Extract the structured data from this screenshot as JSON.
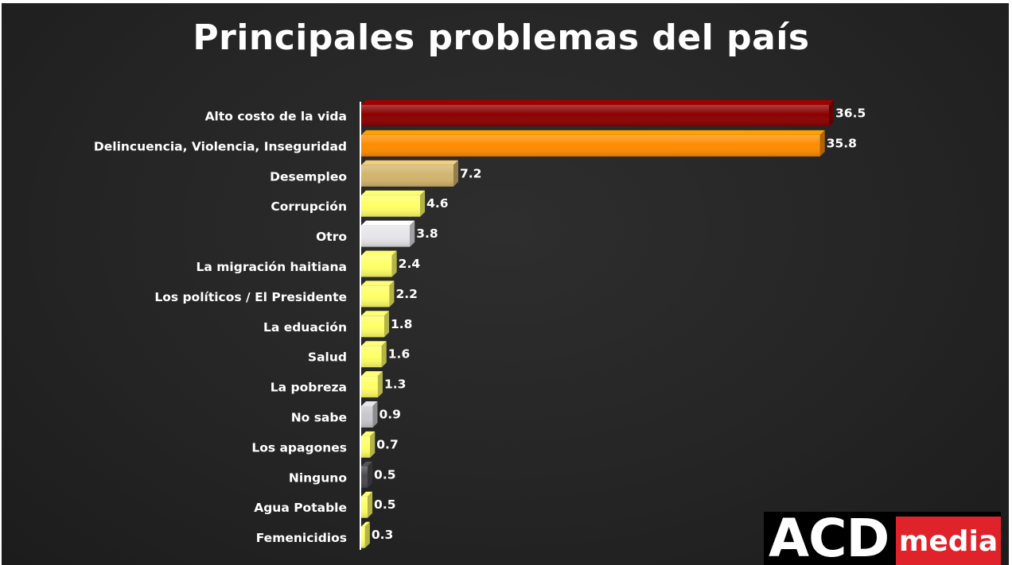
{
  "title": "Principales problemas del país",
  "logo": {
    "left": "ACD",
    "right": "media"
  },
  "chart_data": {
    "type": "bar",
    "orientation": "horizontal",
    "title": "Principales problemas del país",
    "categories": [
      "Alto costo de la vida",
      "Delincuencia, Violencia, Inseguridad",
      "Desempleo",
      "Corrupción",
      "Otro",
      "La migración haitiana",
      "Los políticos / El Presidente",
      "La eduación",
      "Salud",
      "La pobreza",
      "No sabe",
      "Los apagones",
      "Ninguno",
      "Agua Potable",
      "Femenicidios"
    ],
    "values": [
      36.5,
      35.8,
      7.2,
      4.6,
      3.8,
      2.4,
      2.2,
      1.8,
      1.6,
      1.3,
      0.9,
      0.7,
      0.5,
      0.5,
      0.3
    ],
    "value_labels": [
      "36.5",
      "35.8",
      "7.2",
      "4.6",
      "3.8",
      "2.4",
      "2.2",
      "1.8",
      "1.6",
      "1.3",
      "0.9",
      "0.7",
      "0.5",
      "0.5",
      "0.3"
    ],
    "colors": [
      "#8b0000",
      "#ff8c00",
      "#d2b46c",
      "#ffff66",
      "#e6e6ea",
      "#ffff66",
      "#ffff66",
      "#ffff66",
      "#ffff66",
      "#ffff66",
      "#c8c8cc",
      "#ffff66",
      "#4a4a4e",
      "#ffff66",
      "#ffff66"
    ],
    "xlim": [
      0,
      36.5
    ],
    "grid": false,
    "legend": "none"
  }
}
